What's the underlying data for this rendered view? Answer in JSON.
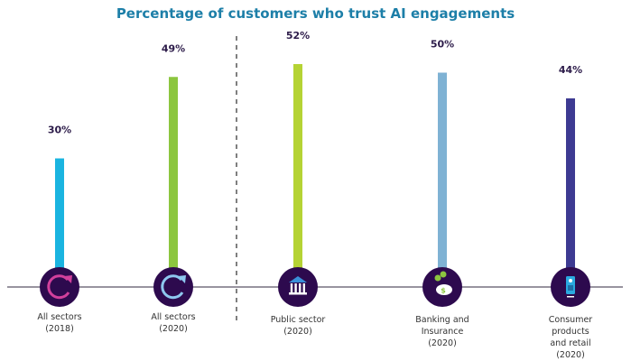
{
  "chart_data": {
    "type": "bar",
    "title": "Percentage of customers who trust AI engagements",
    "xlabel": "",
    "ylabel": "",
    "ylim": [
      0,
      52
    ],
    "grid": false,
    "categories": [
      {
        "label": [
          "All sectors",
          "(2018)"
        ],
        "icon": "refresh-arc-icon"
      },
      {
        "label": [
          "All sectors",
          "(2020)"
        ],
        "icon": "refresh-arc-icon"
      },
      {
        "label": [
          "Public sector",
          "(2020)"
        ],
        "icon": "bank-building-icon"
      },
      {
        "label": [
          "Banking and",
          "Insurance",
          "(2020)"
        ],
        "icon": "piggy-bank-icon"
      },
      {
        "label": [
          "Consumer",
          "products",
          "and retail",
          "(2020)"
        ],
        "icon": "mobile-phone-icon"
      }
    ],
    "values": [
      30,
      49,
      52,
      50,
      44
    ],
    "value_labels": [
      "30%",
      "49%",
      "52%",
      "50%",
      "44%"
    ],
    "colors": [
      "#1ab4e0",
      "#8cc63f",
      "#b5d334",
      "#7fb2d4",
      "#3d3a92"
    ],
    "icon_accent_colors": [
      "#d1409c",
      "#8ec7ef",
      "#3a8fd8",
      "#8cc63f",
      "#2aa9e0"
    ],
    "circle_color": "#2d0a4e",
    "value_label_color": "#2d1c4a",
    "separator": "dashed vertical line between All sectors (2020) and Public sector (2020)"
  }
}
